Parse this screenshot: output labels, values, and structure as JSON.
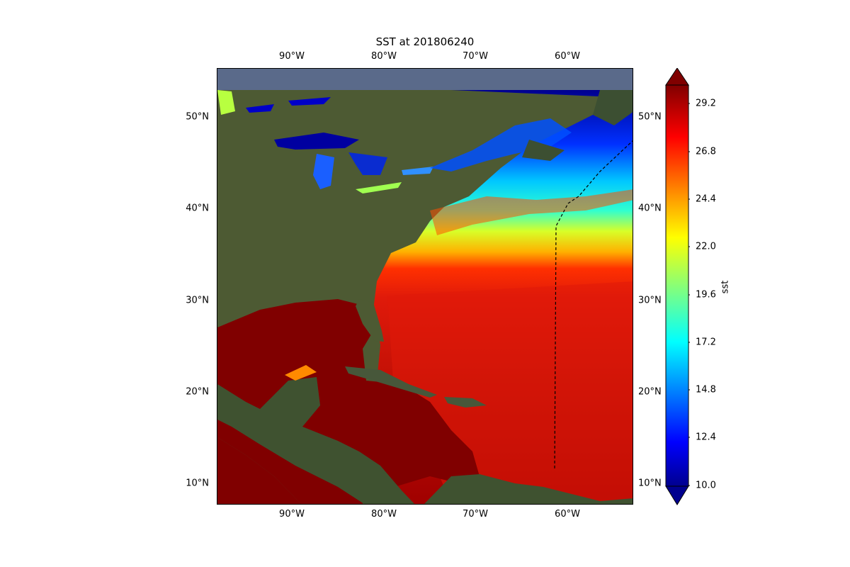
{
  "title": "SST at 201806240",
  "lon_labels": [
    "90°W",
    "80°W",
    "70°W",
    "60°W"
  ],
  "lat_labels": [
    "50°N",
    "40°N",
    "30°N",
    "20°N",
    "10°N"
  ],
  "colorbar": {
    "label": "sst",
    "ticks": [
      "29.2",
      "26.8",
      "24.4",
      "22.0",
      "19.6",
      "17.2",
      "14.8",
      "12.4",
      "10.0"
    ],
    "min": 10.0,
    "max": 30.0,
    "extend": "both",
    "colormap": "jet"
  },
  "colors": {
    "warm_ocean": "#800000",
    "hot": "#e01a0a",
    "land": "#4d5a33",
    "cold": "#00008f"
  }
}
